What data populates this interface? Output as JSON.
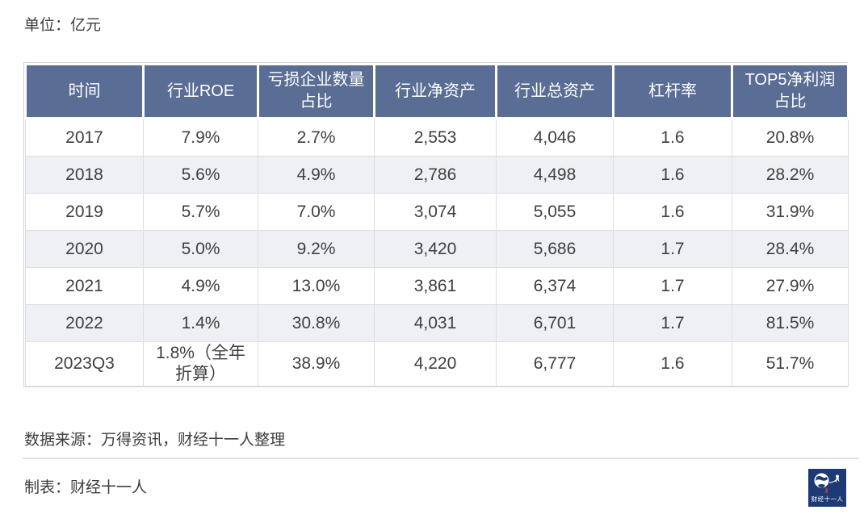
{
  "chart_data": {
    "type": "table",
    "unit_label": "单位：亿元",
    "columns": [
      "时间",
      "行业ROE",
      "亏损企业数量占比",
      "行业净资产",
      "行业总资产",
      "杠杆率",
      "TOP5净利润占比"
    ],
    "rows": [
      [
        "2017",
        "7.9%",
        "2.7%",
        "2,553",
        "4,046",
        "1.6",
        "20.8%"
      ],
      [
        "2018",
        "5.6%",
        "4.9%",
        "2,786",
        "4,498",
        "1.6",
        "28.2%"
      ],
      [
        "2019",
        "5.7%",
        "7.0%",
        "3,074",
        "5,055",
        "1.6",
        "31.9%"
      ],
      [
        "2020",
        "5.0%",
        "9.2%",
        "3,420",
        "5,686",
        "1.7",
        "28.4%"
      ],
      [
        "2021",
        "4.9%",
        "13.0%",
        "3,861",
        "6,374",
        "1.7",
        "27.9%"
      ],
      [
        "2022",
        "1.4%",
        "30.8%",
        "4,031",
        "6,701",
        "1.7",
        "81.5%"
      ],
      [
        "2023Q3",
        "1.8%（全年折算）",
        "38.9%",
        "4,220",
        "6,777",
        "1.6",
        "51.7%"
      ]
    ],
    "source_note": "数据来源：万得资讯，财经十一人整理",
    "credit_note": "制表：财经十一人"
  },
  "logo": {
    "label": "财经十一人",
    "bg_color": "#1e3a75",
    "accent_color": "#c43a3a"
  },
  "colors": {
    "header_bg": "#5a6d94",
    "header_text": "#ffffff",
    "row_alt_bg": "#eef0f4",
    "body_text": "#3f3f3f",
    "border": "#dcdfe4"
  }
}
